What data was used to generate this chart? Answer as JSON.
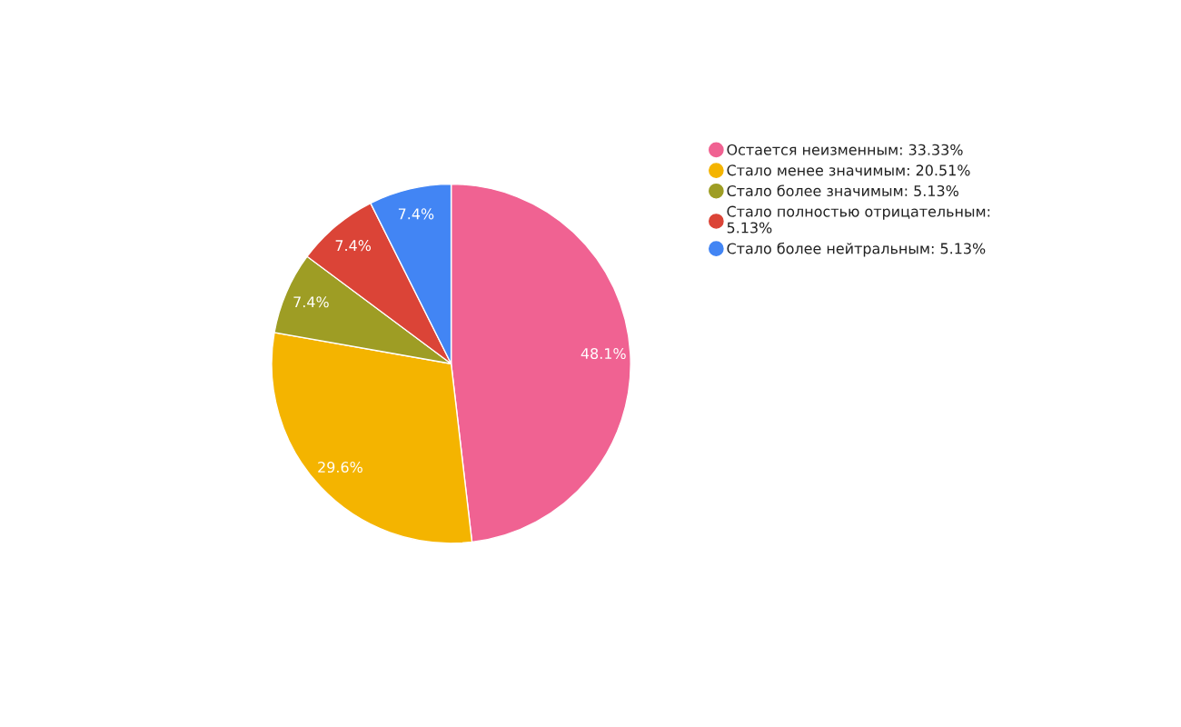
{
  "chart_data": {
    "type": "pie",
    "categories": [
      "Остается неизменным: 33.33%",
      "Стало менее значимым: 20.51%",
      "Стало более значимым: 5.13%",
      "Стало полностью отрицательным: 5.13%",
      "Стало более нейтральным: 5.13%"
    ],
    "values": [
      48.1,
      29.6,
      7.4,
      7.4,
      7.4
    ],
    "value_labels": [
      "48.1%",
      "29.6%",
      "7.4%",
      "7.4%",
      "7.4%"
    ],
    "colors": [
      "#f06292",
      "#f4b400",
      "#9e9d24",
      "#db4437",
      "#4285f4"
    ],
    "legend": "right"
  }
}
